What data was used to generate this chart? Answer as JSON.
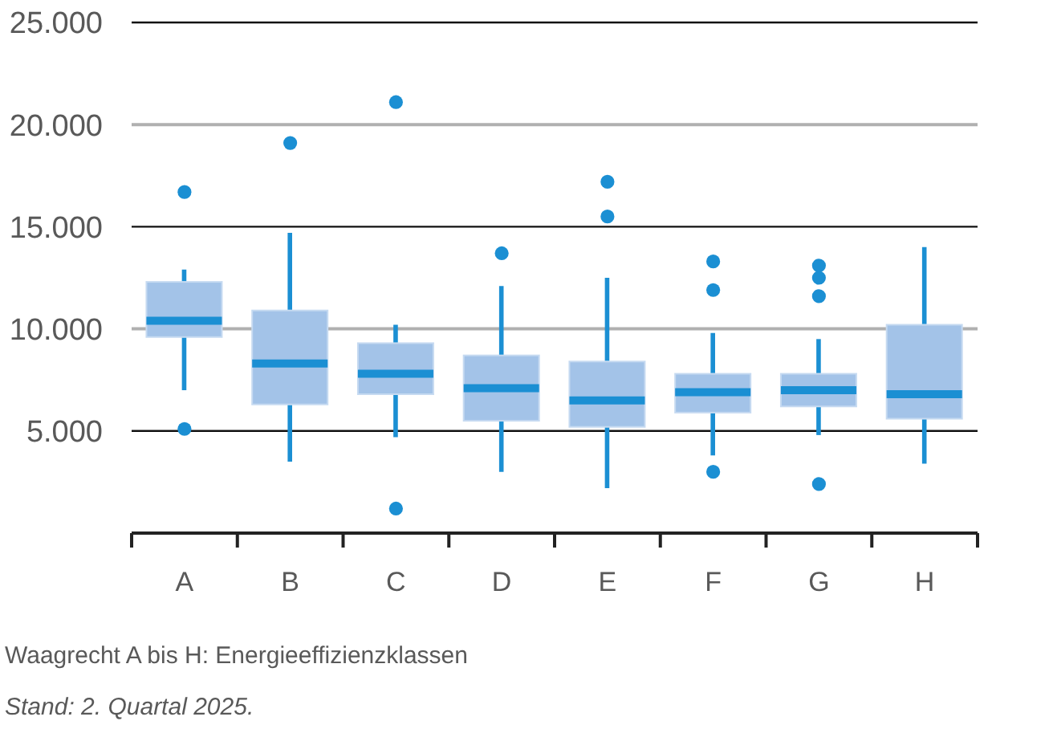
{
  "chart_data": {
    "type": "box",
    "categories": [
      "A",
      "B",
      "C",
      "D",
      "E",
      "F",
      "G",
      "H"
    ],
    "boxes": [
      {
        "low": 7000,
        "q1": 9600,
        "median": 10400,
        "q3": 12300,
        "high": 12900,
        "outliers": [
          16700,
          5100
        ]
      },
      {
        "low": 3500,
        "q1": 6300,
        "median": 8300,
        "q3": 10900,
        "high": 14700,
        "outliers": [
          19100
        ]
      },
      {
        "low": 4700,
        "q1": 6800,
        "median": 7800,
        "q3": 9300,
        "high": 10200,
        "outliers": [
          21100,
          1200
        ]
      },
      {
        "low": 3000,
        "q1": 5500,
        "median": 7100,
        "q3": 8700,
        "high": 12100,
        "outliers": [
          13700
        ]
      },
      {
        "low": 2200,
        "q1": 5200,
        "median": 6500,
        "q3": 8400,
        "high": 12500,
        "outliers": [
          17200,
          15500
        ]
      },
      {
        "low": 3800,
        "q1": 5900,
        "median": 6900,
        "q3": 7800,
        "high": 9800,
        "outliers": [
          13300,
          11900,
          3000
        ]
      },
      {
        "low": 4800,
        "q1": 6200,
        "median": 7000,
        "q3": 7800,
        "high": 9500,
        "outliers": [
          13100,
          12500,
          11600,
          2400
        ]
      },
      {
        "low": 3400,
        "q1": 5600,
        "median": 6800,
        "q3": 10200,
        "high": 14000
      }
    ],
    "color": "#a3c3e8",
    "ylim": [
      0,
      25000
    ],
    "yticks": [
      {
        "value": 5000,
        "label": "5.000"
      },
      {
        "value": 10000,
        "label": "10.000"
      },
      {
        "value": 15000,
        "label": "15.000"
      },
      {
        "value": 20000,
        "label": "20.000"
      },
      {
        "value": 25000,
        "label": "25.000"
      }
    ],
    "grid": "y",
    "annotations": [
      "Waagrecht A bis H: Energieeffizienzklassen",
      "Stand: 2. Quartal 2025."
    ]
  }
}
